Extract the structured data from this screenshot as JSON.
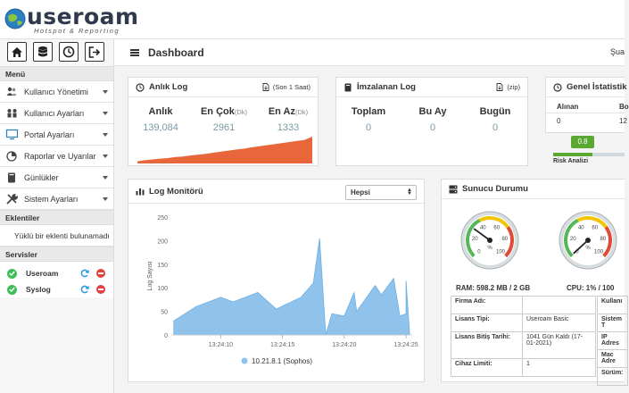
{
  "brand": {
    "name": "useroam",
    "tagline": "Hotspot & Reporting"
  },
  "header": {
    "title": "Dashboard",
    "user_cut": "Şua"
  },
  "sidebar": {
    "menu_title": "Menü",
    "items": [
      {
        "label": "Kullanıcı Yönetimi",
        "icon": "users-icon"
      },
      {
        "label": "Kullanıcı Ayarları",
        "icon": "user-group-icon"
      },
      {
        "label": "Portal Ayarları",
        "icon": "monitor-icon"
      },
      {
        "label": "Raporlar ve Uyarılar",
        "icon": "pie-chart-icon"
      },
      {
        "label": "Günlükler",
        "icon": "book-icon"
      },
      {
        "label": "Sistem Ayarları",
        "icon": "tools-icon"
      }
    ],
    "extensions_title": "Eklentiler",
    "extensions_empty": "Yüklü bir eklenti bulunamadı",
    "services_title": "Servisler",
    "services": [
      {
        "name": "Useroam"
      },
      {
        "name": "Syslog"
      }
    ]
  },
  "anlik_log": {
    "title": "Anlık Log",
    "badge": "(Son 1 Saat)",
    "cols": [
      {
        "label": "Anlık",
        "unit": "",
        "value": "139,084"
      },
      {
        "label": "En Çok",
        "unit": "(Dk)",
        "value": "2961"
      },
      {
        "label": "En Az",
        "unit": "(Dk)",
        "value": "1333"
      }
    ],
    "spark": [
      0.08,
      0.12,
      0.15,
      0.18,
      0.2,
      0.24,
      0.26,
      0.3,
      0.33,
      0.36,
      0.4,
      0.44,
      0.48,
      0.52,
      0.55,
      0.6,
      0.64,
      0.68,
      0.72,
      0.76,
      0.8,
      0.84,
      0.88,
      1.0
    ],
    "spark_color": "#e8663a"
  },
  "imzalanan_log": {
    "title": "İmzalanan Log",
    "badge": "(zip)",
    "cols": [
      {
        "label": "Toplam",
        "value": "0"
      },
      {
        "label": "Bu Ay",
        "value": "0"
      },
      {
        "label": "Bugün",
        "value": "0"
      }
    ]
  },
  "genel": {
    "title": "Genel İstatistik",
    "received_label": "Alınan",
    "received_value": "0",
    "col2_label": "Bo",
    "col2_value": "12",
    "risk_label": "Risk Analizi",
    "risk_value": "0.8",
    "risk_color": "#5aa832"
  },
  "log_monitor": {
    "title": "Log Monitörü",
    "filter_value": "Hepsi",
    "chart_data": {
      "type": "area",
      "ylabel": "Log Sayısı",
      "ylim": [
        0,
        250
      ],
      "yticks": [
        0,
        50,
        100,
        150,
        200,
        250
      ],
      "xticks": [
        "13:24:10",
        "13:24:15",
        "13:24:20",
        "13:24:25"
      ],
      "xrange": [
        6.0,
        25.5
      ],
      "series": [
        {
          "name": "10.21.8.1 (Sophos)",
          "color": "#8fc3ec",
          "x": [
            6.2,
            8.0,
            10.0,
            11.0,
            13.0,
            14.5,
            16.5,
            17.5,
            18.0,
            18.5,
            19.0,
            20.0,
            20.8,
            21.0,
            22.5,
            23.0,
            24.0,
            24.5,
            25.0,
            25.0,
            25.3
          ],
          "y": [
            30,
            60,
            80,
            70,
            90,
            55,
            80,
            110,
            205,
            0,
            45,
            40,
            90,
            50,
            105,
            85,
            120,
            40,
            45,
            115,
            0
          ]
        }
      ]
    }
  },
  "server": {
    "title": "Sunucu Durumu",
    "ram_label": "RAM: 598.2 MB / 2 GB",
    "ram_value": 30,
    "cpu_label": "CPU: 1% / 100",
    "cpu_value": 1,
    "gauge_ticks": [
      "0",
      "20",
      "40",
      "60",
      "80",
      "100"
    ],
    "gauge_unit": "%",
    "table": [
      {
        "k": "Firma Adı:",
        "v": ""
      },
      {
        "k": "Lisans Tipi:",
        "v": "Useroam Basic"
      },
      {
        "k": "Lisans Bitiş Tarihi:",
        "v": "1041 Gün Kaldı (17-01-2021)"
      },
      {
        "k": "Cihaz Limiti:",
        "v": "1"
      }
    ],
    "table2": [
      "Kullanı",
      "Sistem T",
      "IP Adres",
      "Mac Adre",
      "Sürüm:"
    ]
  }
}
